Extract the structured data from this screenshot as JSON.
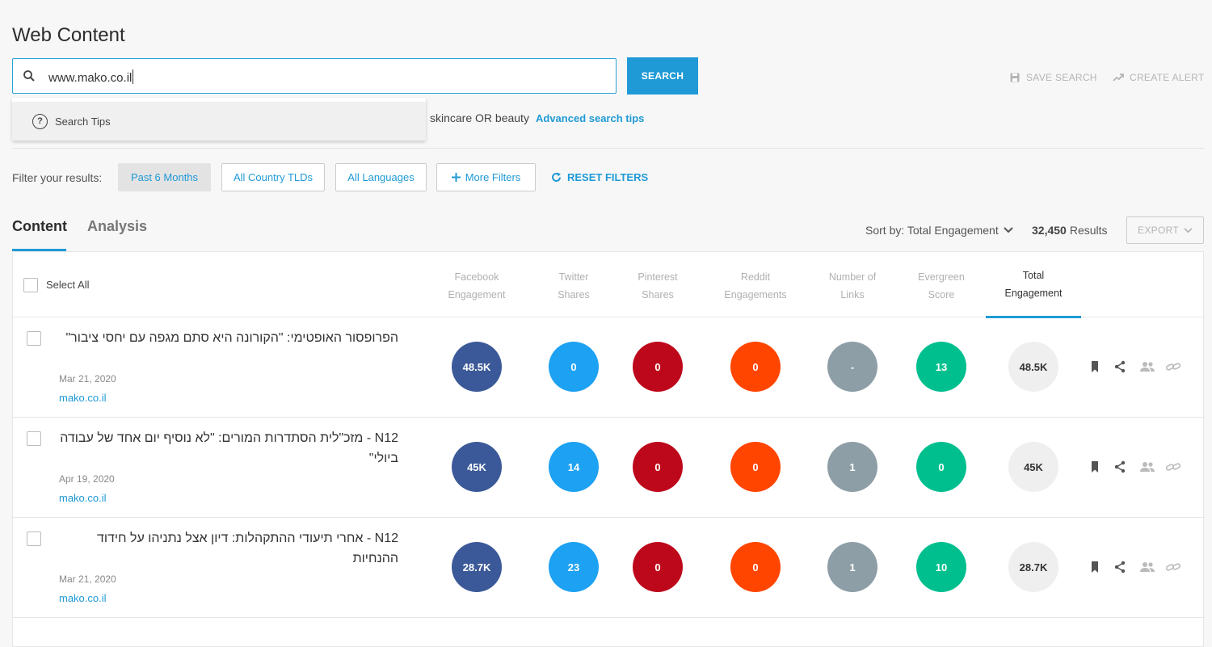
{
  "page": {
    "title": "Web Content"
  },
  "search": {
    "value": "www.mako.co.il",
    "button_label": "SEARCH",
    "dropdown_item": "Search Tips",
    "example_text": "skincare OR beauty",
    "advanced_tips_link": "Advanced search tips"
  },
  "actions": {
    "save_search": "SAVE SEARCH",
    "create_alert": "CREATE ALERT"
  },
  "filters": {
    "label": "Filter your results:",
    "date": "Past 6 Months",
    "country": "All Country TLDs",
    "language": "All Languages",
    "more": "More Filters",
    "reset": "RESET FILTERS"
  },
  "tabs": [
    {
      "label": "Content"
    },
    {
      "label": "Analysis"
    }
  ],
  "toolbar": {
    "sort_label": "Sort by: Total Engagement",
    "results_count": "32,450",
    "results_label": "Results",
    "export_label": "EXPORT"
  },
  "table": {
    "select_all": "Select All",
    "columns": [
      {
        "line1": "Facebook",
        "line2": "Engagement"
      },
      {
        "line1": "Twitter",
        "line2": "Shares"
      },
      {
        "line1": "Pinterest",
        "line2": "Shares"
      },
      {
        "line1": "Reddit",
        "line2": "Engagements"
      },
      {
        "line1": "Number of",
        "line2": "Links"
      },
      {
        "line1": "Evergreen",
        "line2": "Score"
      },
      {
        "line1": "Total",
        "line2": "Engagement"
      }
    ],
    "rows": [
      {
        "title": "הפרופסור האופטימי: \"הקורונה היא סתם מגפה עם יחסי ציבור\"",
        "date": "Mar 21, 2020",
        "domain": "mako.co.il",
        "facebook": "48.5K",
        "twitter": "0",
        "pinterest": "0",
        "reddit": "0",
        "links": "-",
        "evergreen": "13",
        "total": "48.5K"
      },
      {
        "title": "N12 - מזכ\"לית הסתדרות המורים: \"לא נוסיף יום אחד של עבודה ביולי\"",
        "date": "Apr 19, 2020",
        "domain": "mako.co.il",
        "facebook": "45K",
        "twitter": "14",
        "pinterest": "0",
        "reddit": "0",
        "links": "1",
        "evergreen": "0",
        "total": "45K"
      },
      {
        "title": "N12 - אחרי תיעודי ההתקהלות: דיון אצל נתניהו על חידוד ההנחיות",
        "date": "Mar 21, 2020",
        "domain": "mako.co.il",
        "facebook": "28.7K",
        "twitter": "23",
        "pinterest": "0",
        "reddit": "0",
        "links": "1",
        "evergreen": "10",
        "total": "28.7K"
      }
    ]
  },
  "colors": {
    "accent": "#1f9ad6",
    "facebook": "#3b5998",
    "twitter": "#1da1f2",
    "pinterest": "#bd081c",
    "reddit": "#ff4500",
    "links": "#8e9ea6",
    "evergreen": "#00bf8f"
  }
}
